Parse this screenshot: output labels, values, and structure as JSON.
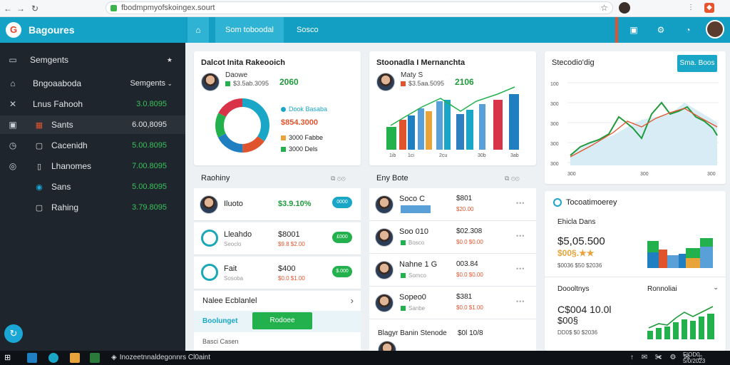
{
  "browser": {
    "url": "fbodmpmyofskoingex.sourt",
    "nav_back": "←",
    "nav_forward": "→",
    "nav_reload": "↻",
    "bookmark_icon": "star-icon"
  },
  "sidebar": {
    "brand_logo": "G",
    "brand_name": "Bagoures",
    "header_label": "Semgents",
    "header_pin": "★",
    "items": [
      {
        "label": "Bngoaaboda",
        "value": "Semgents",
        "has_chevron": true,
        "icon": "home-icon"
      },
      {
        "label": "Lnus Fahooh",
        "value": "3.0.8095",
        "icon": "tool-icon"
      },
      {
        "label": "Sants",
        "value": "6.00,8095",
        "icon": "calendar-icon",
        "subicon": "grid-icon",
        "active": true
      },
      {
        "label": "Cacenidh",
        "value": "5.00.8095",
        "icon": "clock-icon",
        "subicon": "doc-icon"
      },
      {
        "label": "Lhanomes",
        "value": "7.00.8095",
        "icon": "settings-icon",
        "subicon": "doc-icon"
      },
      {
        "label": "Sans",
        "value": "5.00.8095",
        "subicon": "chart-icon"
      },
      {
        "label": "Rahing",
        "value": "3.79.8095",
        "subicon": "doc-icon"
      }
    ],
    "fab_icon": "↻"
  },
  "topbar": {
    "tabs": [
      "Som toboodal",
      "Sosco"
    ],
    "home_icon": "⌂"
  },
  "cards": {
    "donut": {
      "title": "Dalcot Inita Rakeooich",
      "person": "Daowe",
      "stat": "$3.5ab.3095",
      "value": "2060",
      "legend": [
        {
          "label": "Dook Basaba",
          "color": "#1aa7c7"
        },
        {
          "label": "$854.3000",
          "color": "#e0542d"
        },
        {
          "label": "3000 Fabbe",
          "color": "#e8a33b"
        },
        {
          "label": "3000 Dels",
          "color": "#22b14c"
        }
      ]
    },
    "bars": {
      "title": "Stoonadla I Mernanchta",
      "person": "Maty S",
      "stat": "$3.5aa.5095",
      "value": "2106",
      "x_ticks": [
        "1ib",
        "1ci",
        "2cu",
        "30b",
        "3ab"
      ]
    },
    "line": {
      "title": "Stecodio'dig",
      "button": "Sma. Boos",
      "y_ticks": [
        "100",
        "300",
        "300",
        "300",
        "300"
      ],
      "x_ticks": [
        "300",
        "300",
        "300"
      ]
    },
    "trend": {
      "title": "Tocoatimoerey",
      "sub_title": "Ehicla Dans",
      "big_value": "$5,05.500",
      "small_value": "$00§.★★",
      "caption": "$0036 $50 $2036",
      "section2_left": "Doooltnys",
      "section2_right": "Ronnoliai",
      "big_value2": "C$004 10.0l",
      "small_value2": "$00§",
      "caption2": "DD0$ $0 $2036"
    }
  },
  "reporting": {
    "title": "Raohiny",
    "controls": "⧉ ⊙⊙",
    "rows": [
      {
        "title": "Iluoto",
        "value": "$3.9.10%",
        "pill": "0000",
        "pill_color": "#1aa7c7",
        "face": true
      },
      {
        "title": "Lleahdo",
        "sub": "Seoclo",
        "value": "$8001",
        "sub2": "$9.8 $2.00",
        "pill": "£000",
        "pill_color": "#22b14c"
      },
      {
        "title": "Fait",
        "sub": "Sosoba",
        "value": "$400",
        "sub2": "$0.0 $1.00",
        "pill": "$.000",
        "pill_color": "#22b14c"
      }
    ],
    "footer_label": "Nalee Ecblanlel",
    "footer_chevron": "›",
    "footer_link": "Boolunget",
    "footer_button": "Rodoee",
    "footer_sub": "Basci Casen"
  },
  "feed": {
    "title": "Eny Bote",
    "controls": "⧉ ⊙⊙",
    "rows": [
      {
        "title": "Soco C",
        "value": "$801",
        "sub2": "$20.00",
        "bar": true
      },
      {
        "title": "Soo 010",
        "value": "$02.308",
        "sub2": "$0.0 $0.00",
        "sub": "Bosco"
      },
      {
        "title": "Nahne 1 G",
        "value": "003.84",
        "sub2": "$0.0 $0.00",
        "sub": "Somco"
      },
      {
        "title": "Sopeo0",
        "value": "$381",
        "sub2": "$0.0 $1.00",
        "sub": "Sanbe"
      }
    ],
    "footer_title": "Blagyr Banin Stenode",
    "footer_value": "$0l 10/8"
  },
  "taskbar": {
    "title": "Inozeetnnaldegonnrs Cl0aint",
    "tray": "↑ ✉ ✀ ⚙ ✉ ♫",
    "clock_time": "F!OD0",
    "clock_date": "5/0/2023"
  }
}
